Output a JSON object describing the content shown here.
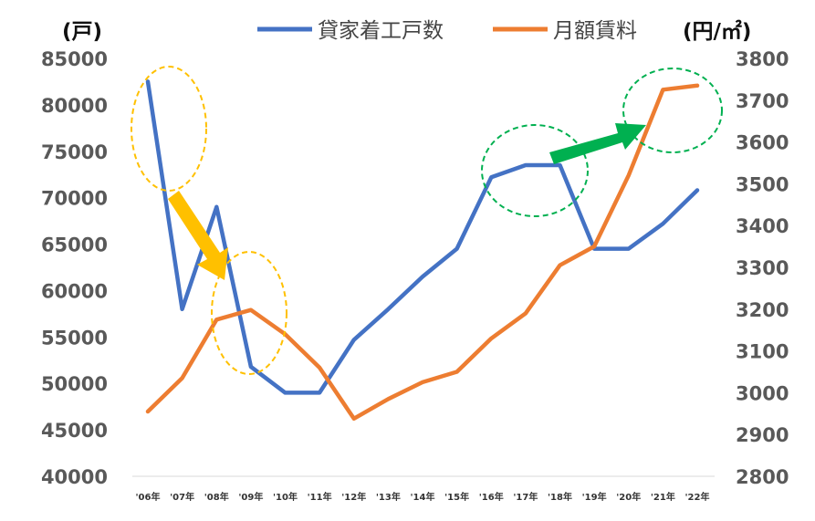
{
  "chart_data": {
    "type": "line",
    "categories": [
      "'06年",
      "'07年",
      "'08年",
      "'09年",
      "'10年",
      "'11年",
      "'12年",
      "'13年",
      "'14年",
      "'15年",
      "'16年",
      "'17年",
      "'18年",
      "'19年",
      "'20年",
      "'21年",
      "'22年"
    ],
    "left_axis": {
      "unit_label": "(戸)",
      "ylim": [
        40000,
        85000
      ],
      "ticks": [
        "85000",
        "80000",
        "75000",
        "70000",
        "65000",
        "60000",
        "55000",
        "50000",
        "45000",
        "40000"
      ]
    },
    "right_axis": {
      "unit_label": "(円/㎡)",
      "ylim": [
        2800,
        3800
      ],
      "ticks": [
        "3800",
        "3700",
        "3600",
        "3500",
        "3400",
        "3300",
        "3200",
        "3100",
        "3000",
        "2900",
        "2800"
      ]
    },
    "series": [
      {
        "name": "貸家着工戸数",
        "axis": "left",
        "color": "#4472C4",
        "values": [
          82500,
          58000,
          69000,
          51800,
          49000,
          49000,
          54700,
          58000,
          61500,
          64500,
          72200,
          73500,
          73500,
          64500,
          64500,
          67200,
          70800
        ]
      },
      {
        "name": "月額賃料",
        "axis": "right",
        "color": "#ED7D31",
        "values": [
          2955,
          3035,
          3175,
          3198,
          3140,
          3060,
          2938,
          2985,
          3025,
          3050,
          3130,
          3190,
          3305,
          3350,
          3520,
          3725,
          3735
        ]
      }
    ],
    "annotations": [
      {
        "shape": "dashed-ellipse",
        "color": "#FFC000",
        "near_category": "'06年"
      },
      {
        "shape": "dashed-ellipse",
        "color": "#FFC000",
        "near_category": "'09年"
      },
      {
        "shape": "dashed-ellipse",
        "color": "#00B050",
        "near_category": "'17年"
      },
      {
        "shape": "dashed-ellipse",
        "color": "#00B050",
        "near_category": "'21年"
      },
      {
        "shape": "arrow",
        "color": "#FFC000",
        "direction": "down-right"
      },
      {
        "shape": "arrow",
        "color": "#00B050",
        "direction": "up-right"
      }
    ],
    "grid": false,
    "legend_position": "top"
  }
}
